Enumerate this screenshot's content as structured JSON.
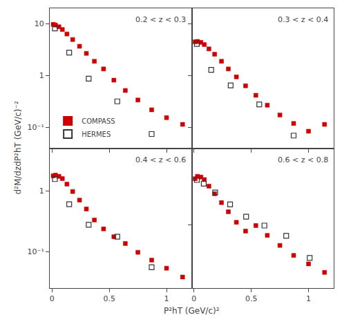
{
  "chart_data": [
    {
      "type": "scatter",
      "annotations": [
        "0.2 < z < 0.3"
      ],
      "y_label": "d²M/dzdP²hT (GeV/c)⁻²",
      "series": [
        {
          "name": "COMPASS",
          "color": "#cc0000",
          "marker": "square",
          "x": [
            0.01,
            0.03,
            0.06,
            0.09,
            0.13,
            0.18,
            0.24,
            0.3,
            0.37,
            0.45,
            0.54,
            0.64,
            0.75,
            0.87,
            1.0,
            1.14
          ],
          "values": [
            9.8,
            9.5,
            8.8,
            7.8,
            6.4,
            5.0,
            3.7,
            2.7,
            1.9,
            1.35,
            0.82,
            0.52,
            0.34,
            0.22,
            0.155,
            0.115
          ]
        },
        {
          "name": "HERMES",
          "color": "#333333",
          "marker": "square-open",
          "x": [
            0.025,
            0.15,
            0.32,
            0.57,
            0.87
          ],
          "values": [
            8.2,
            2.8,
            0.88,
            0.32,
            0.075
          ]
        }
      ],
      "xlim": [
        -0.02,
        1.22
      ],
      "xticks": [
        0,
        0.5,
        1
      ],
      "ylim": [
        0.04,
        20
      ],
      "yticks": [
        {
          "value": 0.1,
          "label": "10⁻¹"
        },
        1,
        10
      ],
      "log": "y",
      "grid": false,
      "legend": "lower left",
      "tick_labels": "y"
    },
    {
      "type": "scatter",
      "annotations": [
        "0.3 < z < 0.4"
      ],
      "series": [
        {
          "name": "COMPASS",
          "color": "#cc0000",
          "marker": "square",
          "x": [
            0.01,
            0.03,
            0.06,
            0.09,
            0.13,
            0.18,
            0.24,
            0.3,
            0.37,
            0.45,
            0.54,
            0.64,
            0.75,
            0.87,
            1.0,
            1.14
          ],
          "values": [
            4.5,
            4.6,
            4.4,
            4.0,
            3.3,
            2.6,
            1.9,
            1.35,
            0.95,
            0.64,
            0.42,
            0.27,
            0.175,
            0.12,
            0.085,
            0.115
          ]
        },
        {
          "name": "HERMES",
          "color": "#333333",
          "marker": "square-open",
          "x": [
            0.025,
            0.15,
            0.32,
            0.57,
            0.87
          ],
          "values": [
            4.1,
            1.3,
            0.65,
            0.28,
            0.07
          ]
        }
      ],
      "xlim": [
        -0.02,
        1.22
      ],
      "xticks": [
        0,
        0.5,
        1
      ],
      "ylim": [
        0.04,
        20
      ],
      "yticks": [
        {
          "value": 0.1,
          "label": "10⁻¹"
        },
        1,
        10
      ],
      "log": "y",
      "grid": false,
      "tick_labels": false
    },
    {
      "type": "scatter",
      "annotations": [
        "0.4 < z < 0.6"
      ],
      "x_label": "P²hT (GeV/c)²",
      "series": [
        {
          "name": "COMPASS",
          "color": "#cc0000",
          "marker": "square",
          "x": [
            0.01,
            0.03,
            0.06,
            0.09,
            0.13,
            0.18,
            0.24,
            0.3,
            0.37,
            0.45,
            0.54,
            0.64,
            0.75,
            0.87,
            1.0,
            1.14
          ],
          "values": [
            1.75,
            1.8,
            1.72,
            1.58,
            1.28,
            0.97,
            0.7,
            0.5,
            0.33,
            0.235,
            0.175,
            0.135,
            0.097,
            0.072,
            0.053,
            0.038
          ]
        },
        {
          "name": "HERMES",
          "color": "#333333",
          "marker": "square-open",
          "x": [
            0.025,
            0.15,
            0.32,
            0.57,
            0.87
          ],
          "values": [
            1.55,
            0.6,
            0.275,
            0.175,
            0.055
          ]
        }
      ],
      "xlim": [
        -0.02,
        1.22
      ],
      "xticks": [
        0,
        0.5,
        1
      ],
      "ylim": [
        0.025,
        5
      ],
      "yticks": [
        {
          "value": 0.1,
          "label": "10⁻¹"
        },
        1
      ],
      "log": "y",
      "grid": false
    },
    {
      "type": "scatter",
      "annotations": [
        "0.6 < z < 0.8"
      ],
      "series": [
        {
          "name": "COMPASS",
          "color": "#cc0000",
          "marker": "square",
          "x": [
            0.01,
            0.03,
            0.06,
            0.09,
            0.13,
            0.18,
            0.24,
            0.3,
            0.37,
            0.45,
            0.54,
            0.64,
            0.75,
            0.87,
            1.0,
            1.14
          ],
          "values": [
            0.4,
            0.43,
            0.42,
            0.39,
            0.32,
            0.255,
            0.195,
            0.148,
            0.108,
            0.083,
            0.098,
            0.073,
            0.054,
            0.04,
            0.031,
            0.024
          ]
        },
        {
          "name": "HERMES",
          "color": "#333333",
          "marker": "square-open",
          "x": [
            0.025,
            0.085,
            0.185,
            0.315,
            0.455,
            0.615,
            0.805,
            1.01
          ],
          "values": [
            0.385,
            0.345,
            0.265,
            0.185,
            0.128,
            0.098,
            0.072,
            0.037
          ]
        }
      ],
      "xlim": [
        -0.02,
        1.22
      ],
      "xticks": [
        0,
        0.5,
        1
      ],
      "ylim": [
        0.015,
        1.0
      ],
      "yticks": [
        {
          "value": 0.1,
          "label": "10⁻¹"
        }
      ],
      "log": "y",
      "grid": false,
      "tick_labels": "x"
    }
  ]
}
